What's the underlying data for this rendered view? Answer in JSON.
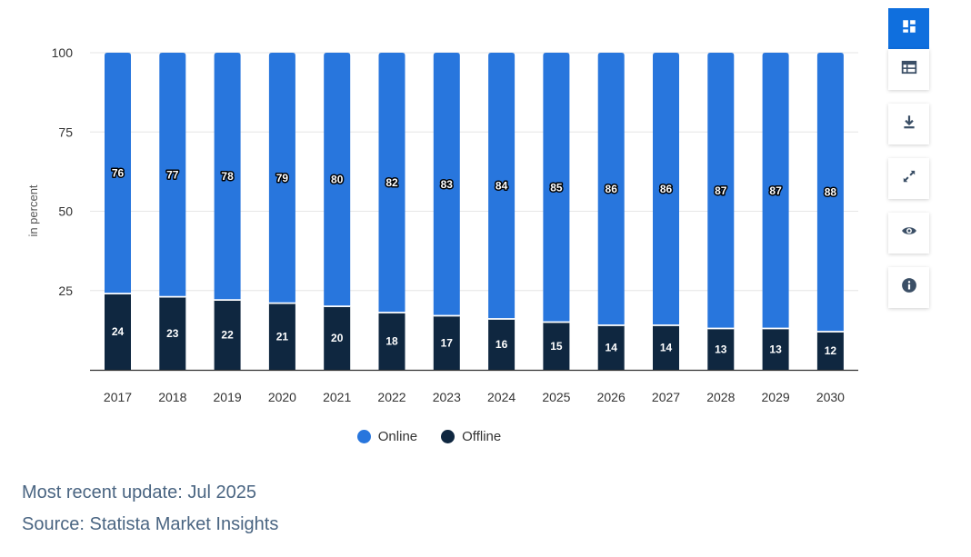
{
  "chart_data": {
    "type": "bar",
    "stacked": true,
    "categories": [
      "2017",
      "2018",
      "2019",
      "2020",
      "2021",
      "2022",
      "2023",
      "2024",
      "2025",
      "2026",
      "2027",
      "2028",
      "2029",
      "2030"
    ],
    "series": [
      {
        "name": "Online",
        "color": "#2876dd",
        "values": [
          76,
          77,
          78,
          79,
          80,
          82,
          83,
          84,
          85,
          86,
          86,
          87,
          87,
          88
        ]
      },
      {
        "name": "Offline",
        "color": "#0f2740",
        "values": [
          24,
          23,
          22,
          21,
          20,
          18,
          17,
          16,
          15,
          14,
          14,
          13,
          13,
          12
        ]
      }
    ],
    "ylabel": "in percent",
    "xlabel": "",
    "ylim": [
      0,
      100
    ],
    "yticks": [
      25,
      50,
      75,
      100
    ],
    "grid": true,
    "legend": "bottom-center"
  },
  "legend": {
    "online_label": "Online",
    "offline_label": "Offline"
  },
  "footer": {
    "update": "Most recent update: Jul 2025",
    "source": "Source: Statista Market Insights"
  },
  "toolbar": {
    "icons": [
      "dashboard-icon",
      "table-icon",
      "download-icon",
      "fullscreen-icon",
      "eye-icon",
      "info-icon"
    ],
    "accent_color": "#0f6fde"
  }
}
